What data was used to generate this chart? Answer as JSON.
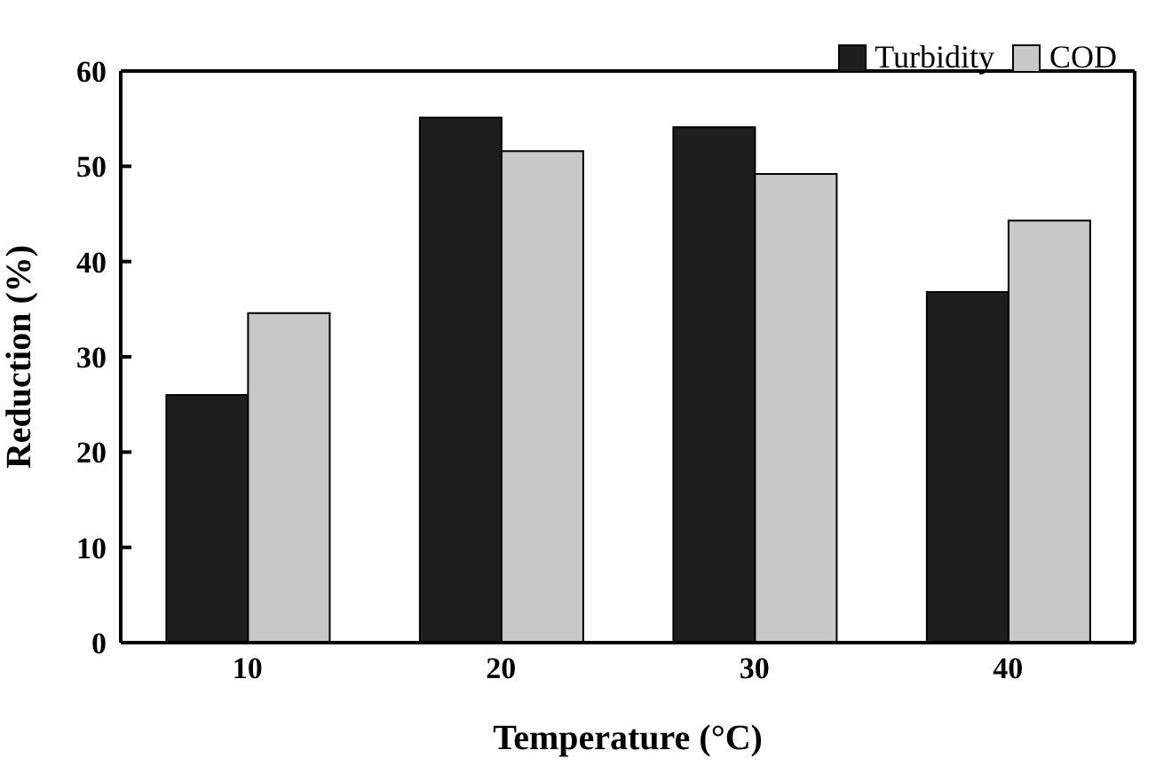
{
  "chart_data": {
    "type": "bar",
    "xlabel": "Temperature (°C)",
    "ylabel": "Reduction (%)",
    "categories": [
      "10",
      "20",
      "30",
      "40"
    ],
    "series": [
      {
        "name": "Turbidity",
        "color": "#1e1e1e",
        "values": [
          26.0,
          55.1,
          54.1,
          36.8
        ]
      },
      {
        "name": "COD",
        "color": "#c8c8c8",
        "values": [
          34.6,
          51.6,
          49.2,
          44.3
        ]
      }
    ],
    "ylim": [
      0,
      60
    ],
    "yticks": [
      0,
      10,
      20,
      30,
      40,
      50,
      60
    ],
    "legend": "top right",
    "grid": false
  }
}
